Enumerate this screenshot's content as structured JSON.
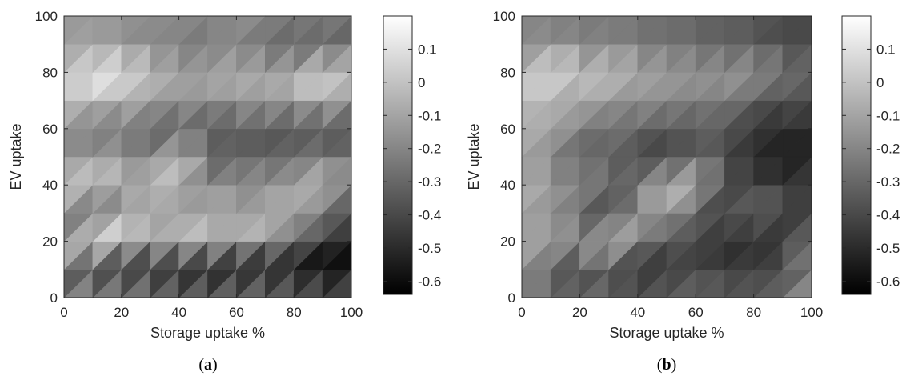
{
  "chart_data": [
    {
      "type": "heatmap",
      "panel_label": {
        "open": "(",
        "letter": "a",
        "close": ")"
      },
      "xlabel": "Storage uptake %",
      "ylabel": "EV uptake",
      "xlim": [
        0,
        100
      ],
      "ylim": [
        0,
        100
      ],
      "x_ticks": [
        "0",
        "20",
        "40",
        "60",
        "80",
        "100"
      ],
      "y_ticks": [
        "0",
        "20",
        "40",
        "60",
        "80",
        "100"
      ],
      "x": [
        0,
        10,
        20,
        30,
        40,
        50,
        60,
        70,
        80,
        90,
        100
      ],
      "y": [
        0,
        10,
        20,
        30,
        40,
        50,
        60,
        70,
        80,
        90,
        100
      ],
      "z": [
        [
          -0.05,
          -0.08,
          -0.1,
          -0.15,
          -0.2,
          -0.2,
          -0.15,
          -0.2,
          -0.25,
          -0.3,
          -0.35
        ],
        [
          -0.45,
          -0.5,
          -0.55,
          -0.55,
          -0.6,
          -0.6,
          -0.63,
          -0.6,
          -0.6,
          -0.63,
          -0.63
        ],
        [
          0.0,
          0.18,
          0.05,
          -0.05,
          0.0,
          0.0,
          -0.05,
          -0.1,
          -0.2,
          -0.45,
          -0.5
        ],
        [
          -0.25,
          -0.4,
          -0.1,
          -0.1,
          -0.15,
          -0.05,
          -0.2,
          0.0,
          -0.2,
          -0.25,
          -0.35
        ],
        [
          0.0,
          0.08,
          -0.05,
          -0.1,
          0.0,
          -0.2,
          -0.1,
          -0.2,
          -0.1,
          0.05,
          -0.3
        ],
        [
          -0.1,
          -0.15,
          -0.15,
          -0.2,
          0.05,
          -0.3,
          -0.35,
          -0.3,
          -0.25,
          -0.25,
          -0.3
        ],
        [
          -0.15,
          -0.3,
          -0.2,
          -0.35,
          -0.3,
          -0.4,
          -0.3,
          -0.35,
          -0.4,
          -0.35,
          -0.4
        ],
        [
          -0.05,
          0.0,
          -0.05,
          -0.1,
          -0.15,
          -0.15,
          -0.15,
          -0.15,
          -0.1,
          -0.05,
          -0.1
        ],
        [
          0.0,
          0.15,
          0.12,
          0.0,
          -0.1,
          -0.1,
          -0.05,
          -0.05,
          -0.05,
          0.1,
          -0.05
        ],
        [
          -0.1,
          -0.1,
          -0.15,
          -0.2,
          -0.25,
          -0.25,
          -0.2,
          -0.3,
          -0.35,
          -0.3,
          -0.35
        ],
        [
          -0.15,
          -0.15,
          -0.15,
          -0.2,
          -0.15,
          -0.2,
          -0.15,
          -0.2,
          -0.2,
          -0.2,
          -0.25
        ]
      ],
      "colorbar": {
        "min": -0.64,
        "max": 0.2,
        "ticks": [
          0.1,
          0,
          -0.1,
          -0.2,
          -0.3,
          -0.4,
          -0.5,
          -0.6
        ],
        "tick_labels": [
          "0.1",
          "0",
          "-0.1",
          "-0.2",
          "-0.3",
          "-0.4",
          "-0.5",
          "-0.6"
        ]
      },
      "colormap": "gray"
    },
    {
      "type": "heatmap",
      "panel_label": {
        "open": "(",
        "letter": "b",
        "close": ")"
      },
      "xlabel": "Storage uptake %",
      "ylabel": "EV uptake",
      "xlim": [
        0,
        100
      ],
      "ylim": [
        0,
        100
      ],
      "x_ticks": [
        "0",
        "20",
        "40",
        "60",
        "80",
        "100"
      ],
      "y_ticks": [
        "0",
        "20",
        "40",
        "60",
        "80",
        "100"
      ],
      "x": [
        0,
        10,
        20,
        30,
        40,
        50,
        60,
        70,
        80,
        90,
        100
      ],
      "y": [
        0,
        10,
        20,
        30,
        40,
        50,
        60,
        70,
        80,
        90,
        100
      ],
      "z": [
        [
          -0.15,
          -0.2,
          -0.25,
          -0.3,
          -0.3,
          -0.3,
          -0.3,
          -0.35,
          -0.3,
          -0.3,
          -0.05
        ],
        [
          -0.2,
          -0.35,
          -0.5,
          -0.35,
          -0.5,
          -0.5,
          -0.4,
          -0.4,
          -0.45,
          -0.4,
          -0.25
        ],
        [
          -0.05,
          -0.1,
          -0.15,
          0.08,
          -0.25,
          -0.3,
          -0.35,
          -0.55,
          -0.5,
          -0.45,
          -0.15
        ],
        [
          -0.1,
          -0.2,
          -0.25,
          -0.5,
          -0.2,
          -0.15,
          -0.35,
          -0.4,
          -0.25,
          -0.4,
          -0.45
        ],
        [
          -0.05,
          -0.1,
          -0.2,
          -0.3,
          -0.15,
          -0.05,
          0.0,
          -0.4,
          -0.4,
          -0.45,
          -0.45
        ],
        [
          -0.1,
          -0.2,
          -0.35,
          -0.25,
          -0.45,
          -0.4,
          -0.35,
          -0.4,
          -0.45,
          -0.6,
          -0.5
        ],
        [
          -0.05,
          -0.1,
          -0.2,
          -0.3,
          -0.3,
          -0.35,
          -0.35,
          -0.3,
          -0.5,
          -0.5,
          -0.45
        ],
        [
          -0.05,
          -0.05,
          -0.1,
          -0.15,
          -0.15,
          -0.2,
          -0.2,
          -0.25,
          -0.35,
          -0.35,
          -0.4
        ],
        [
          -0.05,
          0.15,
          -0.05,
          0.05,
          -0.1,
          -0.1,
          -0.15,
          -0.15,
          -0.1,
          -0.25,
          -0.3
        ],
        [
          -0.15,
          -0.15,
          -0.2,
          -0.2,
          -0.25,
          -0.25,
          -0.3,
          -0.3,
          -0.35,
          -0.4,
          -0.4
        ],
        [
          -0.2,
          -0.25,
          -0.25,
          -0.25,
          -0.25,
          -0.3,
          -0.3,
          -0.35,
          -0.35,
          -0.4,
          -0.4
        ]
      ],
      "colorbar": {
        "min": -0.64,
        "max": 0.2,
        "ticks": [
          0.1,
          0,
          -0.1,
          -0.2,
          -0.3,
          -0.4,
          -0.5,
          -0.6
        ],
        "tick_labels": [
          "0.1",
          "0",
          "-0.1",
          "-0.2",
          "-0.3",
          "-0.4",
          "-0.5",
          "-0.6"
        ]
      },
      "colormap": "gray"
    }
  ]
}
